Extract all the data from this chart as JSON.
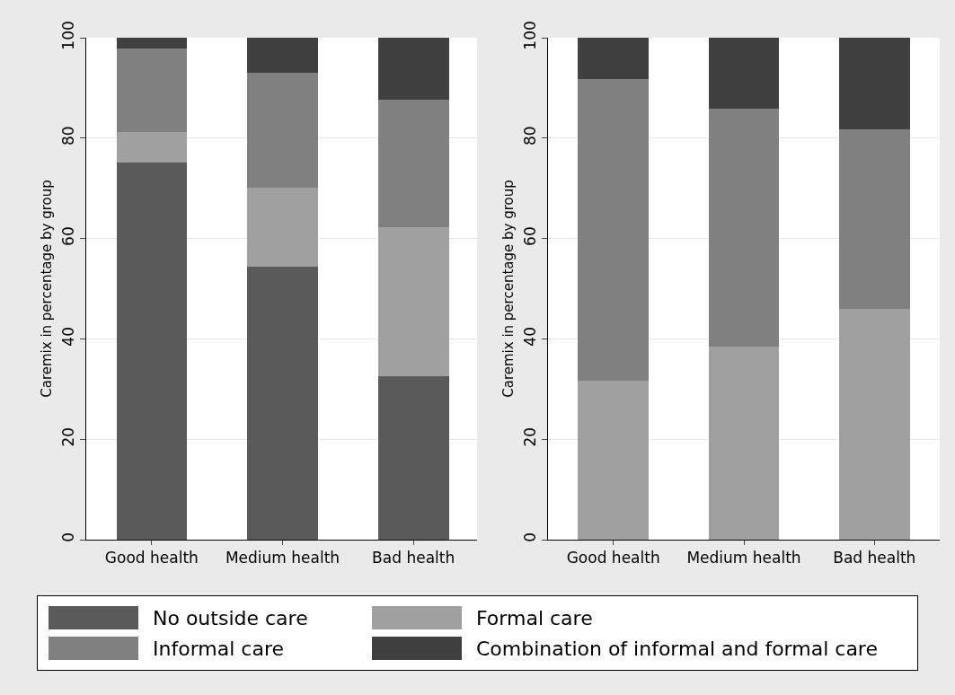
{
  "chart_data": [
    {
      "type": "bar",
      "stacked": true,
      "categories": [
        "Good health",
        "Medium health",
        "Bad health"
      ],
      "ylabel": "Caremix in percentage by group",
      "ylim": [
        0,
        100
      ],
      "yticks": [
        0,
        20,
        40,
        60,
        80,
        100
      ],
      "grid": "y",
      "legend": "bottom",
      "series": [
        {
          "name": "No outside care",
          "color": "#5a5a5a",
          "values": [
            75.1,
            54.4,
            32.5
          ]
        },
        {
          "name": "Formal care",
          "color": "#a0a0a0",
          "values": [
            6.2,
            15.7,
            29.7
          ]
        },
        {
          "name": "Informal care",
          "color": "#808080",
          "values": [
            16.5,
            23.0,
            25.4
          ]
        },
        {
          "name": "Combination of informal and formal care",
          "color": "#404040",
          "values": [
            2.2,
            6.9,
            12.4
          ]
        }
      ]
    },
    {
      "type": "bar",
      "stacked": true,
      "categories": [
        "Good health",
        "Medium health",
        "Bad health"
      ],
      "ylabel": "Caremix in percentage by group",
      "ylim": [
        0,
        100
      ],
      "yticks": [
        0,
        20,
        40,
        60,
        80,
        100
      ],
      "grid": "y",
      "legend": "bottom",
      "series": [
        {
          "name": "Formal care",
          "color": "#a0a0a0",
          "values": [
            31.7,
            38.4,
            46.0
          ]
        },
        {
          "name": "Informal care",
          "color": "#808080",
          "values": [
            60.1,
            47.5,
            35.8
          ]
        },
        {
          "name": "Combination of informal and formal care",
          "color": "#404040",
          "values": [
            8.2,
            14.1,
            18.2
          ]
        }
      ]
    }
  ]
}
